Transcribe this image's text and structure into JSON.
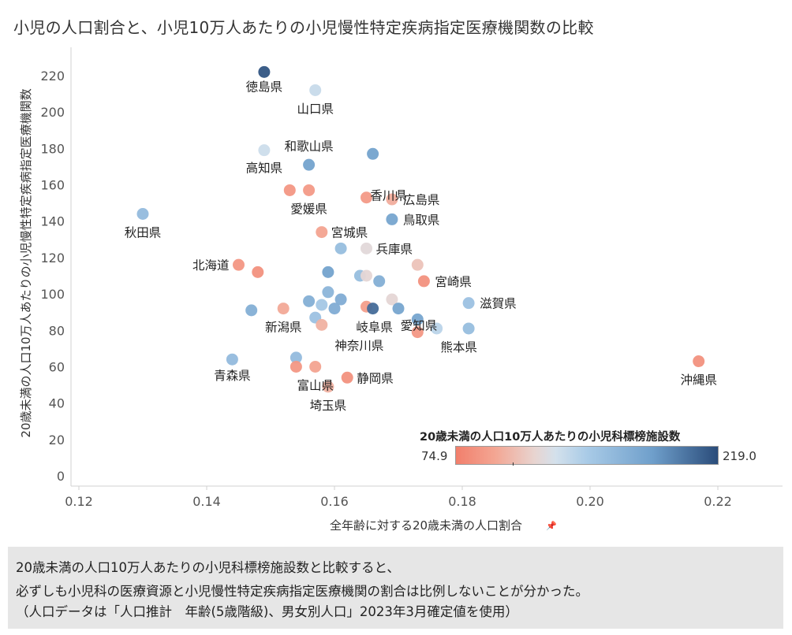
{
  "title": "小児の人口割合と、小児10万人あたりの小児慢性特定疾病指定医療機関数の比較",
  "chart_data": {
    "type": "scatter",
    "xlabel": "全年齢に対する20歳未満の人口割合",
    "ylabel": "20歳未満の人口10万人あたりの小児慢性特定疾病指定医療機関数",
    "xlim": [
      0.115,
      0.23
    ],
    "ylim": [
      -3,
      232
    ],
    "x_ticks": [
      "0.12",
      "0.14",
      "0.16",
      "0.18",
      "0.20",
      "0.22"
    ],
    "y_ticks": [
      "0",
      "20",
      "40",
      "60",
      "80",
      "100",
      "120",
      "140",
      "160",
      "180",
      "200",
      "220"
    ],
    "grid": false,
    "color_legend": {
      "title": "20歳未満の人口10万人あたりの小児科標榜施設数",
      "min_label": "74.9",
      "max_label": "219.0",
      "min": 74.9,
      "max": 219.0,
      "position": "bottom-right"
    },
    "points": [
      {
        "x": 0.149,
        "y": 222,
        "c": 215,
        "label": "徳島県"
      },
      {
        "x": 0.157,
        "y": 212,
        "c": 135,
        "label": "山口県"
      },
      {
        "x": 0.149,
        "y": 179,
        "c": 133,
        "label": "高知県"
      },
      {
        "x": 0.156,
        "y": 171,
        "c": 180,
        "label": "和歌山県"
      },
      {
        "x": 0.166,
        "y": 177,
        "c": 180,
        "label": "香川県"
      },
      {
        "x": 0.153,
        "y": 157,
        "c": 88,
        "label": ""
      },
      {
        "x": 0.156,
        "y": 157,
        "c": 90,
        "label": "愛媛県"
      },
      {
        "x": 0.165,
        "y": 153,
        "c": 90,
        "label": ""
      },
      {
        "x": 0.169,
        "y": 152,
        "c": 100,
        "label": "広島県"
      },
      {
        "x": 0.169,
        "y": 141,
        "c": 178,
        "label": "鳥取県"
      },
      {
        "x": 0.13,
        "y": 144,
        "c": 160,
        "label": "秋田県"
      },
      {
        "x": 0.158,
        "y": 134,
        "c": 95,
        "label": "宮城県"
      },
      {
        "x": 0.161,
        "y": 125,
        "c": 158,
        "label": ""
      },
      {
        "x": 0.165,
        "y": 125,
        "c": 122,
        "label": "兵庫県"
      },
      {
        "x": 0.145,
        "y": 116,
        "c": 88,
        "label": "北海道"
      },
      {
        "x": 0.148,
        "y": 112,
        "c": 85,
        "label": ""
      },
      {
        "x": 0.159,
        "y": 112,
        "c": 180,
        "label": ""
      },
      {
        "x": 0.164,
        "y": 110,
        "c": 158,
        "label": ""
      },
      {
        "x": 0.165,
        "y": 110,
        "c": 120,
        "label": ""
      },
      {
        "x": 0.167,
        "y": 107,
        "c": 170,
        "label": ""
      },
      {
        "x": 0.173,
        "y": 116,
        "c": 110,
        "label": ""
      },
      {
        "x": 0.174,
        "y": 107,
        "c": 85,
        "label": "宮崎県"
      },
      {
        "x": 0.159,
        "y": 101,
        "c": 165,
        "label": ""
      },
      {
        "x": 0.156,
        "y": 96,
        "c": 170,
        "label": ""
      },
      {
        "x": 0.158,
        "y": 94,
        "c": 150,
        "label": ""
      },
      {
        "x": 0.16,
        "y": 92,
        "c": 172,
        "label": ""
      },
      {
        "x": 0.161,
        "y": 97,
        "c": 172,
        "label": ""
      },
      {
        "x": 0.147,
        "y": 91,
        "c": 170,
        "label": ""
      },
      {
        "x": 0.152,
        "y": 92,
        "c": 98,
        "label": "新潟県"
      },
      {
        "x": 0.157,
        "y": 87,
        "c": 155,
        "label": ""
      },
      {
        "x": 0.158,
        "y": 83,
        "c": 102,
        "label": ""
      },
      {
        "x": 0.165,
        "y": 93,
        "c": 92,
        "label": ""
      },
      {
        "x": 0.166,
        "y": 92,
        "c": 205,
        "label": "岐阜県"
      },
      {
        "x": 0.169,
        "y": 97,
        "c": 120,
        "label": ""
      },
      {
        "x": 0.17,
        "y": 92,
        "c": 178,
        "label": "愛知県"
      },
      {
        "x": 0.173,
        "y": 86,
        "c": 178,
        "label": ""
      },
      {
        "x": 0.181,
        "y": 95,
        "c": 155,
        "label": "滋賀県"
      },
      {
        "x": 0.173,
        "y": 79,
        "c": 88,
        "label": ""
      },
      {
        "x": 0.176,
        "y": 81,
        "c": 140,
        "label": "熊本県"
      },
      {
        "x": 0.181,
        "y": 81,
        "c": 158,
        "label": ""
      },
      {
        "x": 0.154,
        "y": 65,
        "c": 160,
        "label": "神奈川県"
      },
      {
        "x": 0.154,
        "y": 60,
        "c": 88,
        "label": ""
      },
      {
        "x": 0.157,
        "y": 60,
        "c": 95,
        "label": "富山県"
      },
      {
        "x": 0.162,
        "y": 54,
        "c": 85,
        "label": "静岡県"
      },
      {
        "x": 0.159,
        "y": 49,
        "c": 102,
        "label": "埼玉県"
      },
      {
        "x": 0.144,
        "y": 64,
        "c": 160,
        "label": "青森県"
      },
      {
        "x": 0.217,
        "y": 63,
        "c": 85,
        "label": "沖縄県"
      }
    ]
  },
  "caption": {
    "line1": "20歳未満の人口10万人あたりの小児科標榜施設数と比較すると、",
    "line2": "必ずしも小児科の医療資源と小児慢性特定疾病指定医療機関の割合は比例しないことが分かった。",
    "line3": "（人口データは「人口推計　年齢(5歳階級)、男女別人口」2023年3月確定値を使用）"
  },
  "icons": {
    "pin": "pin-icon"
  }
}
